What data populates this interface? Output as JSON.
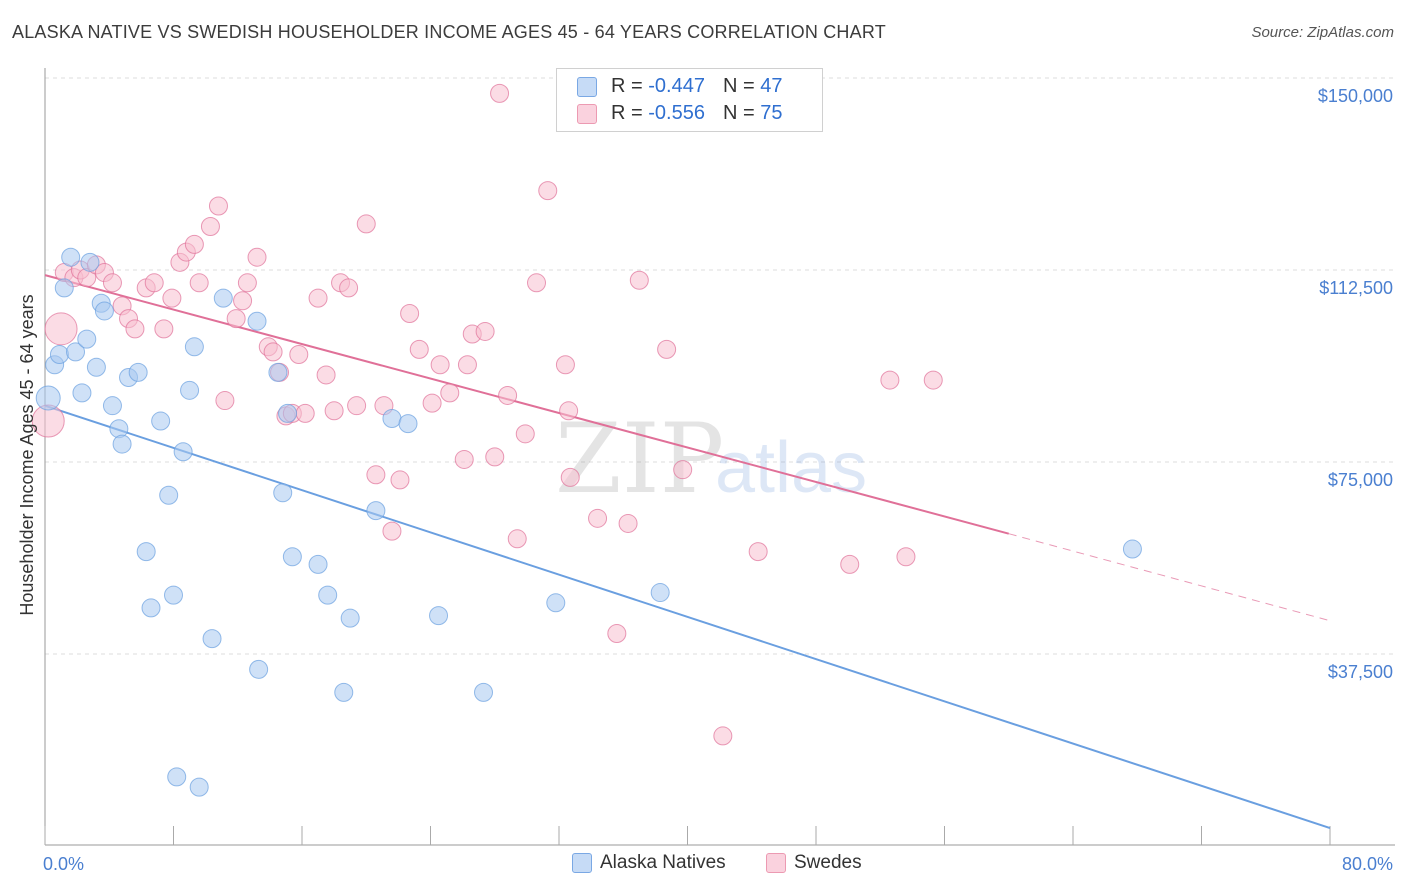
{
  "title": "ALASKA NATIVE VS SWEDISH HOUSEHOLDER INCOME AGES 45 - 64 YEARS CORRELATION CHART",
  "source": "Source: ZipAtlas.com",
  "watermark": {
    "zip": "ZIP",
    "atlas": "atlas"
  },
  "legend": {
    "series1": {
      "r_label": "R = ",
      "r_value": "-0.447",
      "n_label": "N = ",
      "n_value": "47",
      "swatch_color": "#a8c8f0",
      "border_color": "#6a9fe0"
    },
    "series2": {
      "r_label": "R = ",
      "r_value": "-0.556",
      "n_label": "N = ",
      "n_value": "75",
      "swatch_color": "#f8c0d0",
      "border_color": "#e890a8"
    }
  },
  "bottom_legend": {
    "series1": "Alaska Natives",
    "series2": "Swedes"
  },
  "chart_data": {
    "type": "scatter",
    "title": "ALASKA NATIVE VS SWEDISH HOUSEHOLDER INCOME AGES 45 - 64 YEARS CORRELATION CHART",
    "xlabel": "",
    "ylabel": "Householder Income Ages 45 - 64 years",
    "xlim": [
      0,
      80
    ],
    "ylim": [
      0,
      155000
    ],
    "x_tick_labels": [
      "0.0%",
      "80.0%"
    ],
    "y_ticks": [
      37500,
      75000,
      112500,
      150000
    ],
    "y_tick_labels": [
      "$37,500",
      "$75,000",
      "$112,500",
      "$150,000"
    ],
    "series": [
      {
        "name": "Alaska Natives",
        "color": "#6a9fe0",
        "fill": "#a8c8f0",
        "trend": {
          "x": [
            0,
            80
          ],
          "y": [
            86000,
            3500
          ]
        },
        "points": [
          [
            0.2,
            87500,
            12
          ],
          [
            0.6,
            94000,
            9
          ],
          [
            0.9,
            96000,
            9
          ],
          [
            1.2,
            109000,
            9
          ],
          [
            1.6,
            115000,
            9
          ],
          [
            1.9,
            96500,
            9
          ],
          [
            2.3,
            88500,
            9
          ],
          [
            2.6,
            99000,
            9
          ],
          [
            2.8,
            114000,
            9
          ],
          [
            3.2,
            93500,
            9
          ],
          [
            3.5,
            106000,
            9
          ],
          [
            3.7,
            104500,
            9
          ],
          [
            4.2,
            86000,
            9
          ],
          [
            4.6,
            81500,
            9
          ],
          [
            4.8,
            78500,
            9
          ],
          [
            5.2,
            91500,
            9
          ],
          [
            5.8,
            92500,
            9
          ],
          [
            6.3,
            57500,
            9
          ],
          [
            6.6,
            46500,
            9
          ],
          [
            7.2,
            83000,
            9
          ],
          [
            7.7,
            68500,
            9
          ],
          [
            8.0,
            49000,
            9
          ],
          [
            8.2,
            13500,
            9
          ],
          [
            8.6,
            77000,
            9
          ],
          [
            9.0,
            89000,
            9
          ],
          [
            9.3,
            97500,
            9
          ],
          [
            9.6,
            11500,
            9
          ],
          [
            10.4,
            40500,
            9
          ],
          [
            11.1,
            107000,
            9
          ],
          [
            13.2,
            102500,
            9
          ],
          [
            13.3,
            34500,
            9
          ],
          [
            14.5,
            92500,
            9
          ],
          [
            14.8,
            69000,
            9
          ],
          [
            15.1,
            84500,
            9
          ],
          [
            15.4,
            56500,
            9
          ],
          [
            17.0,
            55000,
            9
          ],
          [
            17.6,
            49000,
            9
          ],
          [
            18.6,
            30000,
            9
          ],
          [
            19.0,
            44500,
            9
          ],
          [
            20.6,
            65500,
            9
          ],
          [
            21.6,
            83500,
            9
          ],
          [
            22.6,
            82500,
            9
          ],
          [
            24.5,
            45000,
            9
          ],
          [
            27.3,
            30000,
            9
          ],
          [
            31.8,
            47500,
            9
          ],
          [
            38.3,
            49500,
            9
          ],
          [
            67.7,
            58000,
            9
          ]
        ]
      },
      {
        "name": "Swedes",
        "color": "#e07098",
        "fill": "#f8c0d0",
        "trend": {
          "x": [
            0,
            60
          ],
          "y": [
            111500,
            61000
          ]
        },
        "trend_dashed": {
          "x": [
            60,
            80
          ],
          "y": [
            61000,
            44000
          ]
        },
        "points": [
          [
            0.2,
            83000,
            16
          ],
          [
            1.0,
            101000,
            16
          ],
          [
            1.2,
            112000,
            9
          ],
          [
            1.8,
            111000,
            9
          ],
          [
            2.2,
            112500,
            9
          ],
          [
            2.6,
            111000,
            9
          ],
          [
            3.2,
            113500,
            9
          ],
          [
            3.7,
            112000,
            9
          ],
          [
            4.2,
            110000,
            9
          ],
          [
            4.8,
            105500,
            9
          ],
          [
            5.2,
            103000,
            9
          ],
          [
            5.6,
            101000,
            9
          ],
          [
            6.3,
            109000,
            9
          ],
          [
            6.8,
            110000,
            9
          ],
          [
            7.4,
            101000,
            9
          ],
          [
            7.9,
            107000,
            9
          ],
          [
            8.4,
            114000,
            9
          ],
          [
            8.8,
            116000,
            9
          ],
          [
            9.3,
            117500,
            9
          ],
          [
            9.6,
            110000,
            9
          ],
          [
            10.3,
            121000,
            9
          ],
          [
            10.8,
            125000,
            9
          ],
          [
            11.2,
            87000,
            9
          ],
          [
            11.9,
            103000,
            9
          ],
          [
            12.3,
            106500,
            9
          ],
          [
            12.6,
            110000,
            9
          ],
          [
            13.2,
            115000,
            9
          ],
          [
            13.9,
            97500,
            9
          ],
          [
            14.2,
            96500,
            9
          ],
          [
            14.6,
            92500,
            9
          ],
          [
            15.0,
            84000,
            9
          ],
          [
            15.4,
            84500,
            9
          ],
          [
            15.8,
            96000,
            9
          ],
          [
            16.2,
            84500,
            9
          ],
          [
            17.0,
            107000,
            9
          ],
          [
            17.5,
            92000,
            9
          ],
          [
            18.0,
            85000,
            9
          ],
          [
            18.4,
            110000,
            9
          ],
          [
            18.9,
            109000,
            9
          ],
          [
            19.4,
            86000,
            9
          ],
          [
            20.0,
            121500,
            9
          ],
          [
            20.6,
            72500,
            9
          ],
          [
            21.1,
            86000,
            9
          ],
          [
            21.6,
            61500,
            9
          ],
          [
            22.1,
            71500,
            9
          ],
          [
            22.7,
            104000,
            9
          ],
          [
            23.3,
            97000,
            9
          ],
          [
            24.1,
            86500,
            9
          ],
          [
            24.6,
            94000,
            9
          ],
          [
            25.2,
            88500,
            9
          ],
          [
            26.1,
            75500,
            9
          ],
          [
            26.3,
            94000,
            9
          ],
          [
            26.6,
            100000,
            9
          ],
          [
            27.4,
            100500,
            9
          ],
          [
            28.0,
            76000,
            9
          ],
          [
            28.3,
            147000,
            9
          ],
          [
            28.8,
            88000,
            9
          ],
          [
            29.4,
            60000,
            9
          ],
          [
            29.9,
            80500,
            9
          ],
          [
            30.6,
            110000,
            9
          ],
          [
            31.3,
            128000,
            9
          ],
          [
            32.4,
            94000,
            9
          ],
          [
            32.6,
            85000,
            9
          ],
          [
            32.7,
            72000,
            9
          ],
          [
            34.4,
            64000,
            9
          ],
          [
            35.6,
            41500,
            9
          ],
          [
            36.3,
            63000,
            9
          ],
          [
            37.0,
            110500,
            9
          ],
          [
            38.7,
            97000,
            9
          ],
          [
            39.7,
            73500,
            9
          ],
          [
            42.2,
            21500,
            9
          ],
          [
            44.4,
            57500,
            9
          ],
          [
            50.1,
            55000,
            9
          ],
          [
            52.6,
            91000,
            9
          ],
          [
            53.6,
            56500,
            9
          ],
          [
            55.3,
            91000,
            9
          ]
        ]
      }
    ]
  }
}
